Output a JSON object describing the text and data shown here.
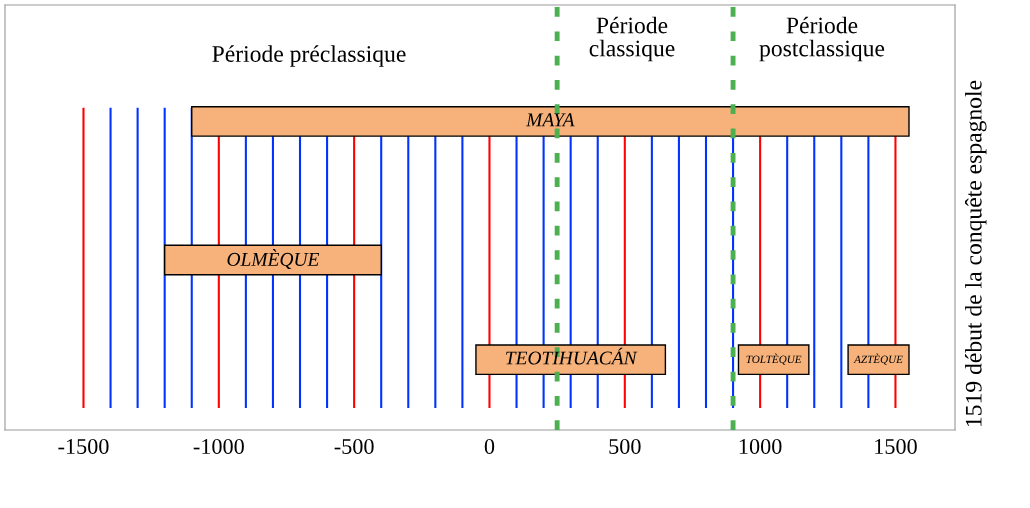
{
  "chart_data": {
    "type": "bar",
    "orientation": "horizontal",
    "categories": [
      null,
      null,
      null
    ],
    "series": [
      {
        "name": "MAYA",
        "color": "#f6b27a",
        "values": [
          2650,
          null,
          null
        ],
        "base": [
          -1100,
          null,
          null
        ]
      },
      {
        "name": "OLMÈQUE",
        "color": "#f6b27a",
        "values": [
          null,
          800,
          null
        ],
        "base": [
          null,
          -1200,
          null
        ]
      },
      {
        "name": "TEOTIHUACÁN",
        "color": "#f6b27a",
        "values": [
          null,
          null,
          700
        ],
        "base": [
          null,
          null,
          -50
        ]
      },
      {
        "name": "TOLTÈQUE",
        "color": "#f6b27a",
        "values": [
          null,
          null,
          260
        ],
        "base": [
          null,
          null,
          920
        ]
      },
      {
        "name": "AZTÈQUE",
        "color": "#f6b27a",
        "values": [
          null,
          null,
          225
        ],
        "base": [
          null,
          null,
          1325
        ]
      }
    ],
    "xlim": [
      -1790,
      1720
    ],
    "xticks": [
      -1500,
      {
        "value": -1400,
        "label": null
      },
      {
        "value": -1300,
        "label": null
      },
      {
        "value": -1200,
        "label": null
      },
      {
        "value": -1100,
        "label": null
      },
      -1000,
      {
        "value": -900,
        "label": null
      },
      {
        "value": -800,
        "label": null
      },
      {
        "value": -700,
        "label": null
      },
      {
        "value": -600,
        "label": null
      },
      -500,
      {
        "value": -400,
        "label": null
      },
      {
        "value": -300,
        "label": null
      },
      {
        "value": -200,
        "label": null
      },
      {
        "value": -100,
        "label": null
      },
      0,
      {
        "value": 100,
        "label": null
      },
      {
        "value": 200,
        "label": null
      },
      {
        "value": 300,
        "label": null
      },
      {
        "value": 400,
        "label": null
      },
      500,
      {
        "value": 600,
        "label": null
      },
      {
        "value": 700,
        "label": null
      },
      {
        "value": 800,
        "label": null
      },
      {
        "value": 900,
        "label": null
      },
      1000,
      {
        "value": 1100,
        "label": null
      },
      {
        "value": 1200,
        "label": null
      },
      {
        "value": 1300,
        "label": null
      },
      {
        "value": 1400,
        "label": null
      },
      1500
    ],
    "grid": "x",
    "legend": false,
    "ref_lines": [
      {
        "axis": "x",
        "value": 250,
        "color": "#4caf50",
        "line_style": "dotted"
      },
      {
        "axis": "x",
        "value": 900,
        "color": "#4caf50",
        "line_style": "dotted"
      }
    ],
    "annotations": [
      "Période préclassique",
      "Période\nclassique",
      "Période\npostclassique",
      "1519 début de la conquête espagnole"
    ]
  }
}
